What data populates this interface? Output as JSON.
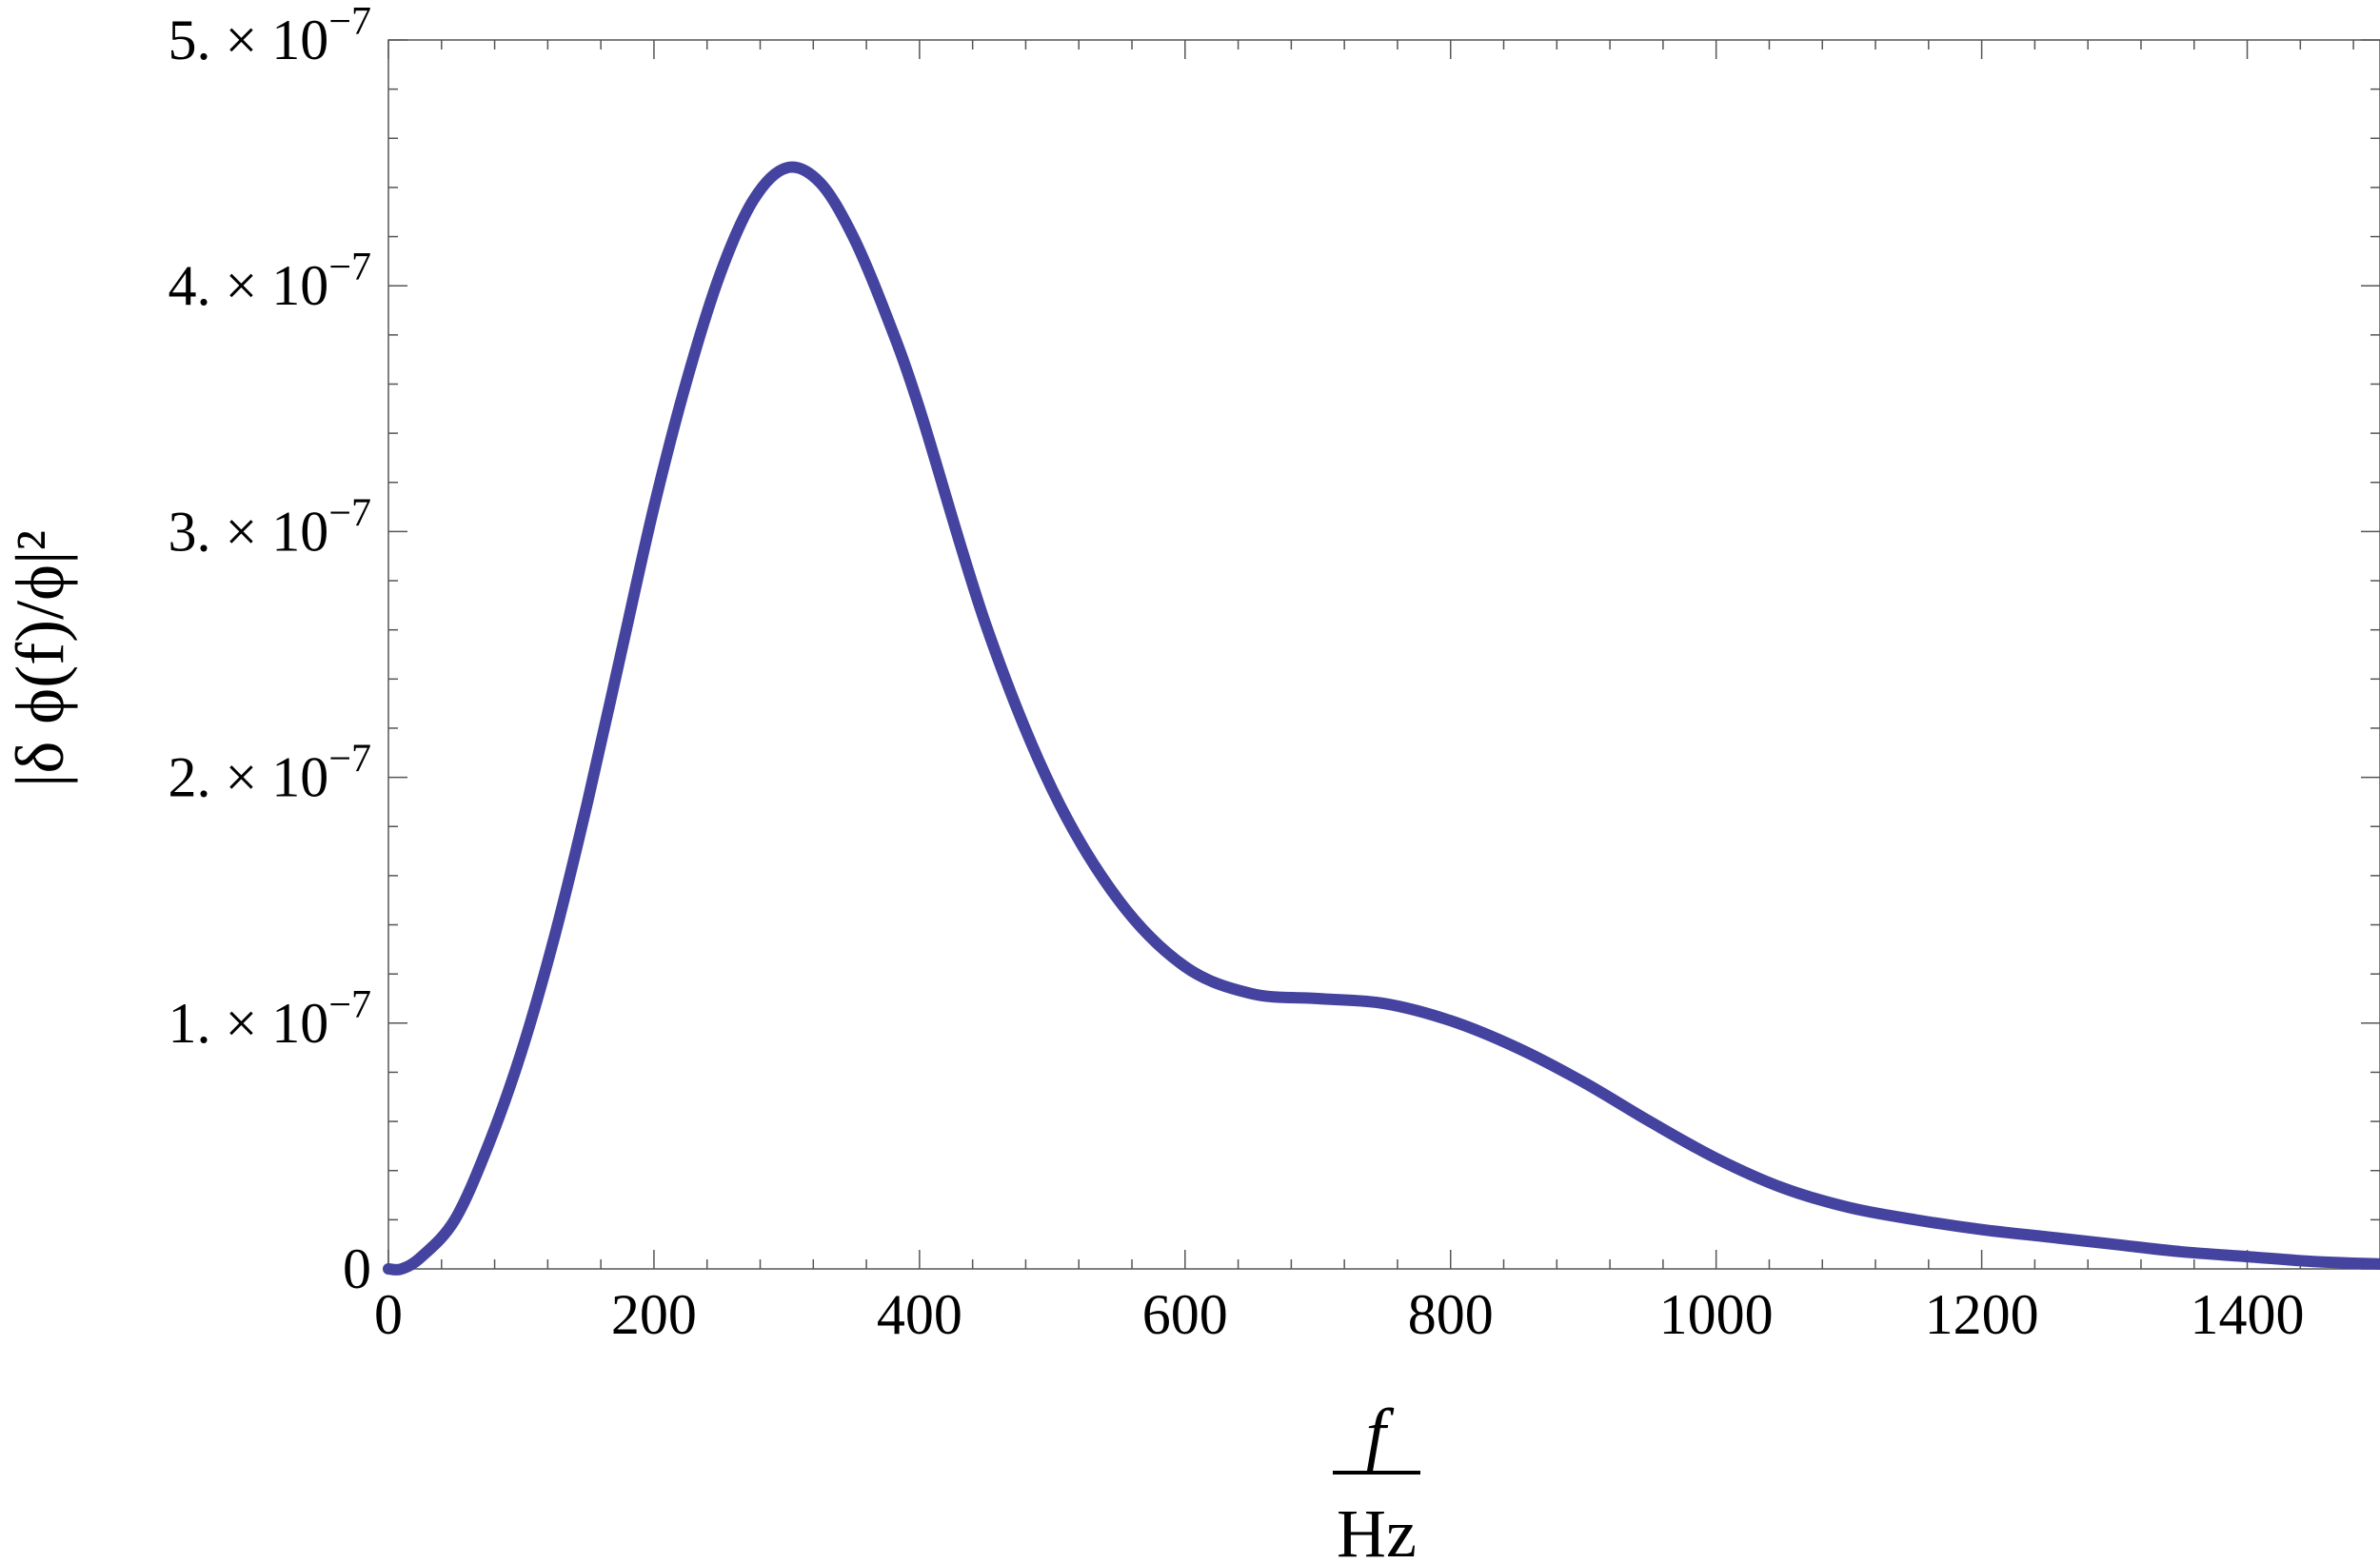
{
  "chart_data": {
    "type": "line",
    "title": "",
    "xlabel": {
      "numerator": "f",
      "denominator": "Hz"
    },
    "ylabel": "|δ ϕ(f)/ϕ|²",
    "xlim": [
      0,
      1500
    ],
    "ylim": [
      0,
      5e-07
    ],
    "grid": false,
    "x_ticks": [
      0,
      200,
      400,
      600,
      800,
      1000,
      1200,
      1400
    ],
    "x_tick_labels": [
      "0",
      "200",
      "400",
      "600",
      "800",
      "1000",
      "1200",
      "1400"
    ],
    "y_ticks": [
      0,
      1e-07,
      2e-07,
      3e-07,
      4e-07,
      5e-07
    ],
    "y_tick_labels": [
      {
        "mantissa": "0",
        "times": "",
        "base": "",
        "exponent": ""
      },
      {
        "mantissa": "1.",
        "times": "×",
        "base": "10",
        "exponent": "−7"
      },
      {
        "mantissa": "2.",
        "times": "×",
        "base": "10",
        "exponent": "−7"
      },
      {
        "mantissa": "3.",
        "times": "×",
        "base": "10",
        "exponent": "−7"
      },
      {
        "mantissa": "4.",
        "times": "×",
        "base": "10",
        "exponent": "−7"
      },
      {
        "mantissa": "5.",
        "times": "×",
        "base": "10",
        "exponent": "−7"
      }
    ],
    "series": [
      {
        "color": "#4444a0",
        "points": [
          [
            0,
            0
          ],
          [
            10,
            0.0
          ],
          [
            25,
            5e-09
          ],
          [
            50,
            2e-08
          ],
          [
            75,
            5e-08
          ],
          [
            100,
            8.8e-08
          ],
          [
            125,
            1.35e-07
          ],
          [
            150,
            1.9e-07
          ],
          [
            175,
            2.5e-07
          ],
          [
            200,
            3.1e-07
          ],
          [
            225,
            3.62e-07
          ],
          [
            250,
            4.05e-07
          ],
          [
            275,
            4.35e-07
          ],
          [
            300,
            4.48e-07
          ],
          [
            325,
            4.42e-07
          ],
          [
            350,
            4.2e-07
          ],
          [
            375,
            3.88e-07
          ],
          [
            400,
            3.5e-07
          ],
          [
            450,
            2.62e-07
          ],
          [
            500,
            1.95e-07
          ],
          [
            550,
            1.5e-07
          ],
          [
            600,
            1.23e-07
          ],
          [
            650,
            1.12e-07
          ],
          [
            700,
            1.1e-07
          ],
          [
            750,
            1.08e-07
          ],
          [
            800,
            1.01e-07
          ],
          [
            850,
            9e-08
          ],
          [
            900,
            7.6e-08
          ],
          [
            950,
            6e-08
          ],
          [
            1000,
            4.5e-08
          ],
          [
            1050,
            3.3e-08
          ],
          [
            1100,
            2.5e-08
          ],
          [
            1150,
            2e-08
          ],
          [
            1200,
            1.6e-08
          ],
          [
            1250,
            1.3e-08
          ],
          [
            1300,
            1e-08
          ],
          [
            1350,
            7e-09
          ],
          [
            1400,
            5e-09
          ],
          [
            1450,
            3e-09
          ],
          [
            1500,
            2e-09
          ]
        ]
      }
    ]
  }
}
